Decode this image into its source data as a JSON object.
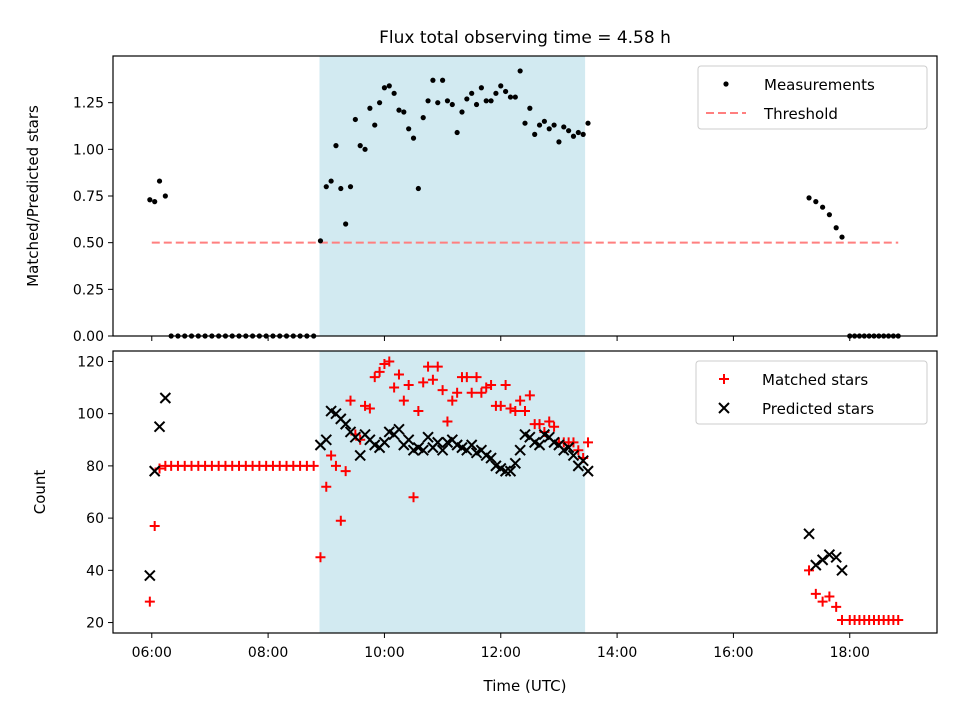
{
  "title": "Flux total observing time = 4.58 h",
  "colors": {
    "highlight": "#add8e6",
    "threshold": "#ff7f7f",
    "matched": "#ff0000",
    "predicted": "#000000",
    "measurements": "#000000"
  },
  "chart_data": [
    {
      "type": "scatter",
      "ylabel": "Matched/Predicted stars",
      "ylim": [
        0,
        1.5
      ],
      "yticks": [
        "0.00",
        "0.25",
        "0.50",
        "0.75",
        "1.00",
        "1.25"
      ],
      "xlim": [
        "05:20",
        "19:30"
      ],
      "highlight_span": [
        "08:53",
        "13:27"
      ],
      "legend": {
        "placement": "upper right",
        "entries": [
          "Measurements",
          "Threshold"
        ]
      },
      "threshold": {
        "name": "Threshold",
        "value": 0.5,
        "x_range": [
          "06:00",
          "18:50"
        ]
      },
      "series": [
        {
          "name": "Measurements",
          "marker": "dot",
          "x": [
            "05:58",
            "06:03",
            "06:08",
            "06:14",
            "06:20",
            "06:27",
            "06:34",
            "06:41",
            "06:48",
            "06:55",
            "07:02",
            "07:09",
            "07:16",
            "07:23",
            "07:30",
            "07:37",
            "07:44",
            "07:51",
            "07:58",
            "08:05",
            "08:12",
            "08:19",
            "08:26",
            "08:33",
            "08:40",
            "08:47",
            "08:54",
            "09:00",
            "09:05",
            "09:10",
            "09:15",
            "09:20",
            "09:25",
            "09:30",
            "09:35",
            "09:40",
            "09:45",
            "09:50",
            "09:55",
            "10:00",
            "10:05",
            "10:10",
            "10:15",
            "10:20",
            "10:25",
            "10:30",
            "10:35",
            "10:40",
            "10:45",
            "10:50",
            "10:55",
            "11:00",
            "11:05",
            "11:10",
            "11:15",
            "11:20",
            "11:25",
            "11:30",
            "11:35",
            "11:40",
            "11:45",
            "11:50",
            "11:55",
            "12:00",
            "12:05",
            "12:10",
            "12:15",
            "12:20",
            "12:25",
            "12:30",
            "12:35",
            "12:40",
            "12:45",
            "12:50",
            "12:55",
            "13:00",
            "13:05",
            "13:10",
            "13:15",
            "13:20",
            "13:25",
            "13:30",
            "17:18",
            "17:25",
            "17:32",
            "17:39",
            "17:46",
            "17:52",
            "18:00",
            "18:05",
            "18:10",
            "18:15",
            "18:20",
            "18:25",
            "18:30",
            "18:35",
            "18:40",
            "18:45",
            "18:50"
          ],
          "y": [
            0.73,
            0.72,
            0.83,
            0.75,
            0,
            0,
            0,
            0,
            0,
            0,
            0,
            0,
            0,
            0,
            0,
            0,
            0,
            0,
            0,
            0,
            0,
            0,
            0,
            0,
            0,
            0,
            0.51,
            0.8,
            0.83,
            1.02,
            0.79,
            0.6,
            0.8,
            1.16,
            1.02,
            1.0,
            1.22,
            1.13,
            1.25,
            1.33,
            1.34,
            1.3,
            1.21,
            1.2,
            1.11,
            1.06,
            0.79,
            1.17,
            1.26,
            1.37,
            1.25,
            1.37,
            1.26,
            1.24,
            1.09,
            1.2,
            1.27,
            1.3,
            1.24,
            1.33,
            1.26,
            1.26,
            1.3,
            1.34,
            1.31,
            1.28,
            1.28,
            1.42,
            1.14,
            1.22,
            1.08,
            1.13,
            1.15,
            1.11,
            1.13,
            1.04,
            1.12,
            1.1,
            1.07,
            1.09,
            1.08,
            1.14,
            0.74,
            0.72,
            0.69,
            0.65,
            0.58,
            0.53,
            0,
            0,
            0,
            0,
            0,
            0,
            0,
            0,
            0,
            0,
            0
          ]
        }
      ]
    },
    {
      "type": "scatter",
      "xlabel": "Time (UTC)",
      "ylabel": "Count",
      "ylim": [
        16,
        124
      ],
      "yticks": [
        "20",
        "40",
        "60",
        "80",
        "100",
        "120"
      ],
      "xticks": [
        "06:00",
        "08:00",
        "10:00",
        "12:00",
        "14:00",
        "16:00",
        "18:00"
      ],
      "xlim": [
        "05:20",
        "19:30"
      ],
      "highlight_span": [
        "08:53",
        "13:27"
      ],
      "legend": {
        "placement": "upper right",
        "entries": [
          "Matched stars",
          "Predicted stars"
        ]
      },
      "series": [
        {
          "name": "Matched stars",
          "marker": "plus",
          "x": [
            "05:58",
            "06:03",
            "06:08",
            "06:14",
            "06:20",
            "06:27",
            "06:34",
            "06:41",
            "06:48",
            "06:55",
            "07:02",
            "07:09",
            "07:16",
            "07:23",
            "07:30",
            "07:37",
            "07:44",
            "07:51",
            "07:58",
            "08:05",
            "08:12",
            "08:19",
            "08:26",
            "08:33",
            "08:40",
            "08:47",
            "08:54",
            "09:00",
            "09:05",
            "09:10",
            "09:15",
            "09:20",
            "09:25",
            "09:30",
            "09:35",
            "09:40",
            "09:45",
            "09:50",
            "09:55",
            "10:00",
            "10:05",
            "10:10",
            "10:15",
            "10:20",
            "10:25",
            "10:30",
            "10:35",
            "10:40",
            "10:45",
            "10:50",
            "10:55",
            "11:00",
            "11:05",
            "11:10",
            "11:15",
            "11:20",
            "11:25",
            "11:30",
            "11:35",
            "11:40",
            "11:45",
            "11:50",
            "11:55",
            "12:00",
            "12:05",
            "12:10",
            "12:15",
            "12:20",
            "12:25",
            "12:30",
            "12:35",
            "12:40",
            "12:45",
            "12:50",
            "12:55",
            "13:00",
            "13:05",
            "13:10",
            "13:15",
            "13:20",
            "13:25",
            "13:30",
            "17:18",
            "17:25",
            "17:32",
            "17:39",
            "17:46",
            "17:52",
            "18:00",
            "18:05",
            "18:10",
            "18:15",
            "18:20",
            "18:25",
            "18:30",
            "18:35",
            "18:40",
            "18:45",
            "18:50"
          ],
          "y": [
            28,
            57,
            79,
            80,
            80,
            80,
            80,
            80,
            80,
            80,
            80,
            80,
            80,
            80,
            80,
            80,
            80,
            80,
            80,
            80,
            80,
            80,
            80,
            80,
            80,
            80,
            45,
            72,
            84,
            80,
            59,
            78,
            105,
            92,
            90,
            103,
            102,
            114,
            116,
            119,
            120,
            110,
            115,
            105,
            111,
            68,
            101,
            112,
            118,
            113,
            118,
            109,
            97,
            105,
            108,
            114,
            114,
            108,
            114,
            108,
            110,
            111,
            103,
            103,
            111,
            102,
            101,
            105,
            101,
            107,
            96,
            96,
            93,
            97,
            95,
            89,
            89,
            89,
            89,
            86,
            83,
            89,
            40,
            31,
            28,
            30,
            26,
            21,
            21,
            21,
            21,
            21,
            21,
            21,
            21,
            21,
            21,
            21,
            21
          ]
        },
        {
          "name": "Predicted stars",
          "marker": "x",
          "x": [
            "05:58",
            "06:03",
            "06:08",
            "06:14",
            "08:54",
            "09:00",
            "09:05",
            "09:10",
            "09:15",
            "09:20",
            "09:25",
            "09:30",
            "09:35",
            "09:40",
            "09:45",
            "09:50",
            "09:55",
            "10:00",
            "10:05",
            "10:10",
            "10:15",
            "10:20",
            "10:25",
            "10:30",
            "10:35",
            "10:40",
            "10:45",
            "10:50",
            "10:55",
            "11:00",
            "11:05",
            "11:10",
            "11:15",
            "11:20",
            "11:25",
            "11:30",
            "11:35",
            "11:40",
            "11:45",
            "11:50",
            "11:55",
            "12:00",
            "12:05",
            "12:10",
            "12:15",
            "12:20",
            "12:25",
            "12:30",
            "12:35",
            "12:40",
            "12:45",
            "12:50",
            "12:55",
            "13:00",
            "13:05",
            "13:10",
            "13:15",
            "13:20",
            "13:25",
            "13:30",
            "17:18",
            "17:25",
            "17:32",
            "17:39",
            "17:46",
            "17:52"
          ],
          "y": [
            38,
            78,
            95,
            106,
            88,
            90,
            101,
            100,
            98,
            96,
            93,
            91,
            84,
            92,
            90,
            88,
            87,
            89,
            93,
            92,
            94,
            88,
            90,
            86,
            87,
            86,
            91,
            87,
            89,
            86,
            89,
            90,
            88,
            87,
            86,
            88,
            85,
            86,
            84,
            83,
            80,
            79,
            78,
            78,
            81,
            86,
            92,
            91,
            89,
            88,
            92,
            91,
            89,
            88,
            86,
            87,
            84,
            80,
            82,
            78,
            54,
            42,
            44,
            46,
            45,
            40
          ]
        }
      ]
    }
  ]
}
